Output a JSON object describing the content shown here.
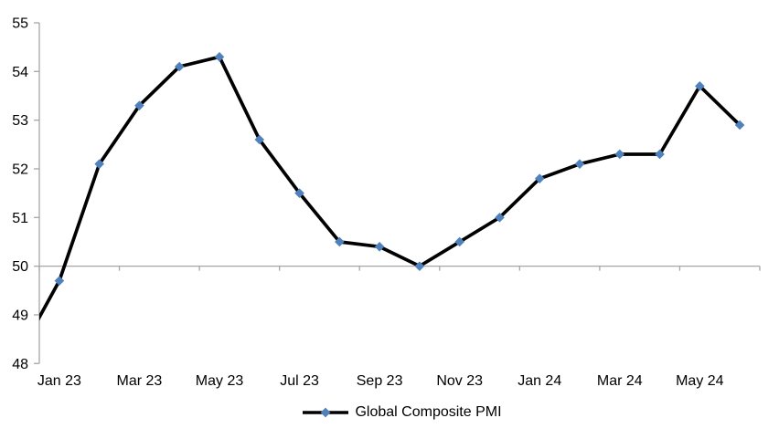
{
  "chart_data": {
    "type": "line",
    "title": "",
    "categories": [
      "Jan 23",
      "Feb 23",
      "Mar 23",
      "Apr 23",
      "May 23",
      "Jun 23",
      "Jul 23",
      "Aug 23",
      "Sep 23",
      "Oct 23",
      "Nov 23",
      "Dec 23",
      "Jan 24",
      "Feb 24",
      "Mar 24",
      "Apr 24",
      "May 24",
      "Jun 24"
    ],
    "series": [
      {
        "name": "Global Composite PMI",
        "values": [
          49.7,
          52.1,
          53.3,
          54.1,
          54.3,
          52.6,
          51.5,
          50.5,
          50.4,
          50.0,
          50.5,
          51.0,
          51.8,
          52.1,
          52.3,
          52.3,
          53.7,
          52.9
        ]
      }
    ],
    "clipped_leading_point": {
      "category": "Dec 22",
      "value": 48.2
    },
    "x_tick_labels": [
      "Jan 23",
      "Mar 23",
      "May 23",
      "Jul 23",
      "Sep 23",
      "Nov 23",
      "Jan 24",
      "Mar 24",
      "May 24"
    ],
    "y_ticks": [
      48,
      49,
      50,
      51,
      52,
      53,
      54,
      55
    ],
    "ylim": [
      48,
      55
    ],
    "x_axis_crosses_at": 50,
    "grid": "none",
    "marker_shape": "diamond",
    "legend": {
      "position": "bottom",
      "entries": [
        "Global Composite PMI"
      ]
    },
    "colors": {
      "line": "#000000",
      "marker": "#4f81bd",
      "axis": "#a6a6a6",
      "text": "#000000"
    }
  }
}
